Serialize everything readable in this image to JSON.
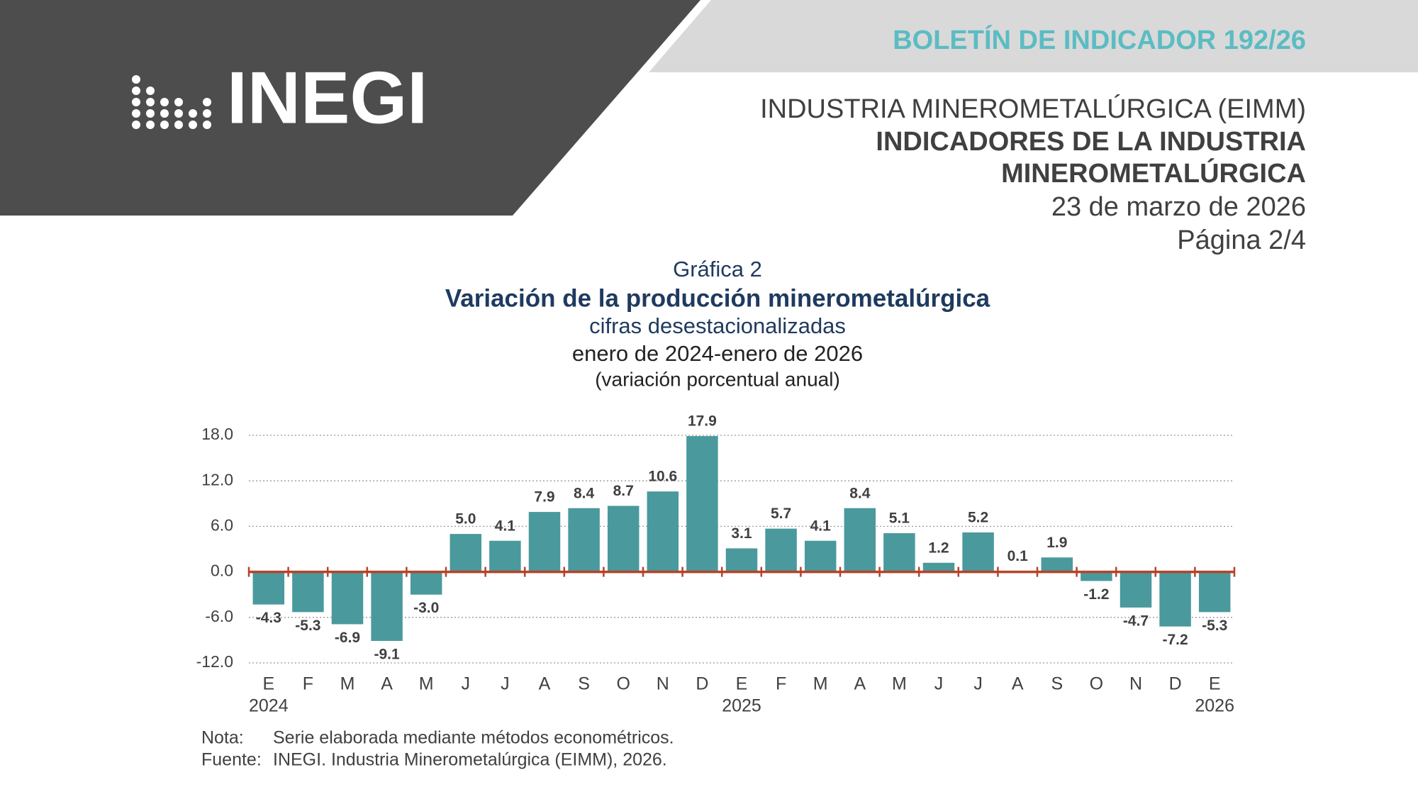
{
  "header": {
    "bulletin": "BOLETÍN DE INDICADOR 192/26",
    "logo": "INEGI",
    "lines": [
      "INDUSTRIA MINEROMETALÚRGICA (EIMM)",
      "INDICADORES DE LA INDUSTRIA",
      "MINEROMETALÚRGICA",
      "23 de marzo de 2026",
      "Página 2/4"
    ]
  },
  "chart_data": {
    "type": "bar",
    "label": "Gráfica 2",
    "title": "Variación de la producción minerometalúrgica",
    "subtitle": "cifras desestacionalizadas",
    "period": "enero de 2024-enero de 2026",
    "unit": "(variación porcentual anual)",
    "categories": [
      "E",
      "F",
      "M",
      "A",
      "M",
      "J",
      "J",
      "A",
      "S",
      "O",
      "N",
      "D",
      "E",
      "F",
      "M",
      "A",
      "M",
      "J",
      "J",
      "A",
      "S",
      "O",
      "N",
      "D",
      "E"
    ],
    "category_years": [
      "2024",
      null,
      null,
      null,
      null,
      null,
      null,
      null,
      null,
      null,
      null,
      null,
      "2025",
      null,
      null,
      null,
      null,
      null,
      null,
      null,
      null,
      null,
      null,
      null,
      "2026"
    ],
    "values": [
      -4.3,
      -5.3,
      -6.9,
      -9.1,
      -3.0,
      5.0,
      4.1,
      7.9,
      8.4,
      8.7,
      10.6,
      17.9,
      3.1,
      5.7,
      4.1,
      8.4,
      5.1,
      1.2,
      5.2,
      0.1,
      1.9,
      -1.2,
      -4.7,
      -7.2,
      -5.3
    ],
    "value_labels": [
      "-4.3",
      "-5.3",
      "-6.9",
      "-9.1",
      "-3.0",
      "5.0",
      "4.1",
      "7.9",
      "8.4",
      "8.7",
      "10.6",
      "17.9",
      "3.1",
      "5.7",
      "4.1",
      "8.4",
      "5.1",
      "1.2",
      "5.2",
      "0.1",
      "1.9",
      "-1.2",
      "-4.7",
      "-7.2",
      "-5.3"
    ],
    "color": "#4a999d",
    "zero_line_color": "#b5432a",
    "ylim": [
      -12,
      18
    ],
    "yticks": [
      {
        "value": 18,
        "label": "18.0"
      },
      {
        "value": 12,
        "label": "12.0"
      },
      {
        "value": 6,
        "label": "6.0"
      },
      {
        "value": 0,
        "label": "0.0"
      },
      {
        "value": -6,
        "label": "-6.0"
      },
      {
        "value": -12,
        "label": "-12.0"
      }
    ],
    "grid": true
  },
  "notes": [
    {
      "key": "Nota:",
      "text": "Serie elaborada mediante métodos econométricos."
    },
    {
      "key": "Fuente:",
      "text": "INEGI. Industria Minerometalúrgica (EIMM), 2026."
    }
  ]
}
